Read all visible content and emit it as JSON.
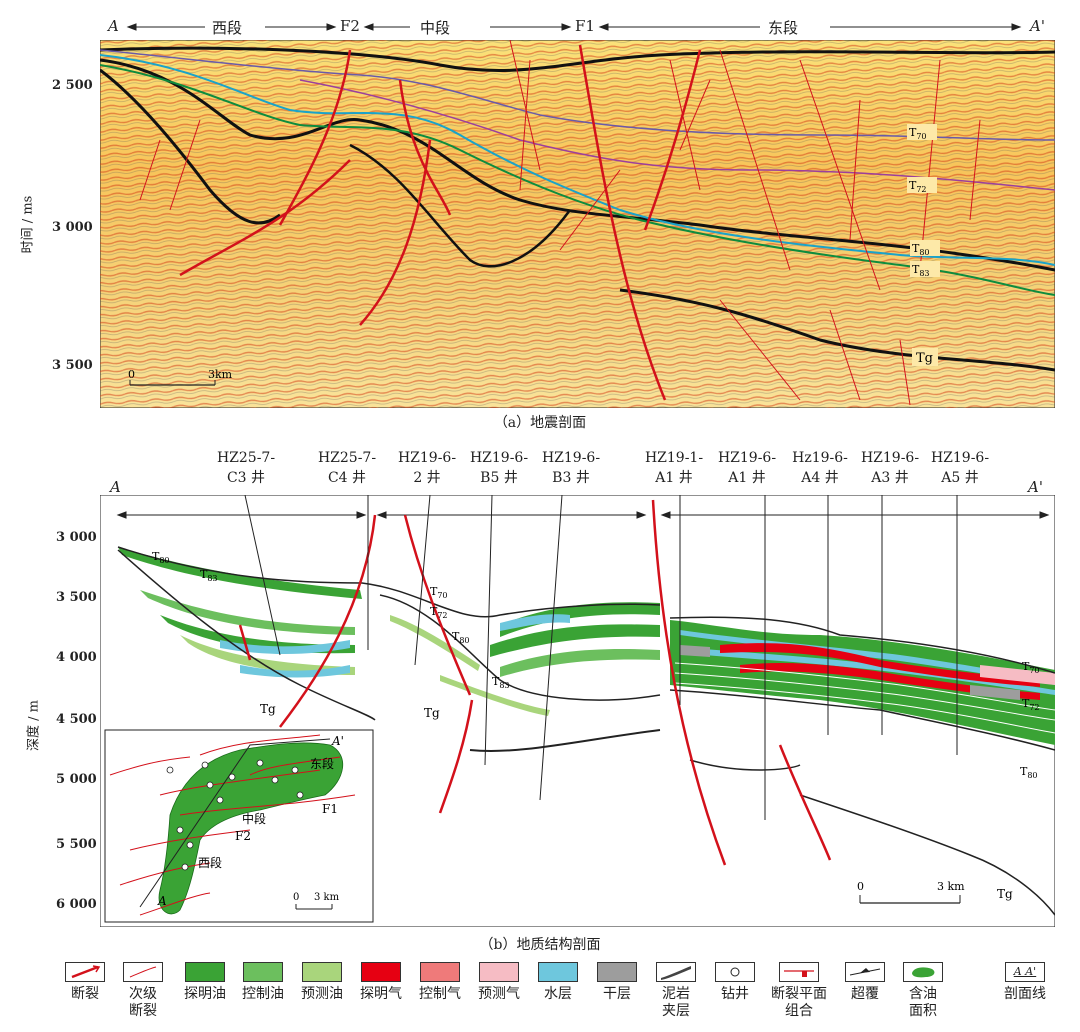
{
  "seismic": {
    "header": {
      "A": "A",
      "A_prime": "A'",
      "west": "西段",
      "F2": "F2",
      "middle": "中段",
      "F1": "F1",
      "east": "东段"
    },
    "ylabel": "时间 / ms",
    "yticks": [
      "2 500",
      "3 000",
      "3 500"
    ],
    "scale": {
      "zero": "0",
      "km": "3km"
    },
    "horizons": {
      "T70": "T",
      "T70_sub": "70",
      "T72": "T",
      "T72_sub": "72",
      "T80": "T",
      "T80_sub": "80",
      "T83": "T",
      "T83_sub": "83",
      "Tg": "Tg"
    },
    "caption": "（a）地震剖面"
  },
  "geology": {
    "wells": [
      {
        "l1": "HZ25-7-",
        "l2": "C3 井"
      },
      {
        "l1": "HZ25-7-",
        "l2": "C4 井"
      },
      {
        "l1": "HZ19-6-",
        "l2": "2 井"
      },
      {
        "l1": "HZ19-6-",
        "l2": "B5 井"
      },
      {
        "l1": "HZ19-6-",
        "l2": "B3 井"
      },
      {
        "l1": "HZ19-1-",
        "l2": "A1 井"
      },
      {
        "l1": "HZ19-6-",
        "l2": "A1 井"
      },
      {
        "l1": "Hz19-6-",
        "l2": "A4 井"
      },
      {
        "l1": "HZ19-6-",
        "l2": "A3 井"
      },
      {
        "l1": "HZ19-6-",
        "l2": "A5 井"
      }
    ],
    "A": "A",
    "A_prime": "A'",
    "ylabel": "深度 / m",
    "yticks": [
      "3 000",
      "3 500",
      "4 000",
      "4 500",
      "5 000",
      "5 500",
      "6 000"
    ],
    "horizons": {
      "T80a": "T",
      "T80a_sub": "80",
      "T83a": "T",
      "T83a_sub": "83",
      "T70b": "T",
      "T70b_sub": "70",
      "T72b": "T",
      "T72b_sub": "72",
      "T80b": "T",
      "T80b_sub": "80",
      "T83b": "T",
      "T83b_sub": "83",
      "Tg": "Tg",
      "T70c": "T",
      "T70c_sub": "70",
      "T72c": "T",
      "T72c_sub": "72",
      "T80c": "T",
      "T80c_sub": "80",
      "Tg2": "Tg"
    },
    "inset": {
      "A_prime": "A'",
      "east": "东段",
      "F1": "F1",
      "middle": "中段",
      "F2": "F2",
      "west": "西段",
      "A": "A",
      "scale_zero": "0",
      "scale_km": "3 km"
    },
    "scale": {
      "zero": "0",
      "km": "3 km"
    },
    "caption": "（b）地质结构剖面"
  },
  "legend": [
    {
      "label": "断裂",
      "icon": "fault-icon"
    },
    {
      "label": "次级\n断裂",
      "icon": "secondary-fault-icon"
    },
    {
      "label": "探明油",
      "icon": "proven-oil-swatch",
      "color": "#3aa335"
    },
    {
      "label": "控制油",
      "icon": "controlled-oil-swatch",
      "color": "#6cbf5e"
    },
    {
      "label": "预测油",
      "icon": "predicted-oil-swatch",
      "color": "#a9d57c"
    },
    {
      "label": "探明气",
      "icon": "proven-gas-swatch",
      "color": "#e60012"
    },
    {
      "label": "控制气",
      "icon": "controlled-gas-swatch",
      "color": "#ef7a7a"
    },
    {
      "label": "预测气",
      "icon": "predicted-gas-swatch",
      "color": "#f6bcc4"
    },
    {
      "label": "水层",
      "icon": "water-layer-swatch",
      "color": "#6ec7dd"
    },
    {
      "label": "干层",
      "icon": "dry-layer-swatch",
      "color": "#9d9d9d"
    },
    {
      "label": "泥岩\n夹层",
      "icon": "mudstone-interlayer-icon"
    },
    {
      "label": "钻井",
      "icon": "well-icon"
    },
    {
      "label": "断裂平面\n组合",
      "icon": "fault-plane-icon"
    },
    {
      "label": "超覆",
      "icon": "overlap-icon"
    },
    {
      "label": "含油\n面积",
      "icon": "oil-area-icon"
    },
    {
      "label": "剖面线",
      "icon": "section-line-icon",
      "text": "A  A'"
    }
  ]
}
